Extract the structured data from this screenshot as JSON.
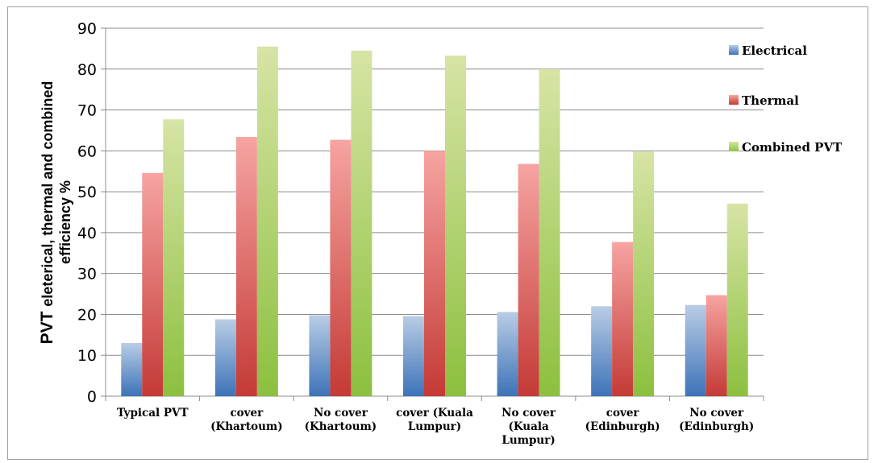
{
  "chart_data": {
    "type": "bar",
    "categories": [
      "Typical PVT",
      "cover (Khartoum)",
      "No cover (Khartoum)",
      "cover (Kuala Lumpur)",
      "No cover (Kuala Lumpur)",
      "cover (Edinburgh)",
      "No cover (Edinburgh)"
    ],
    "category_lines": [
      [
        "Typical PVT"
      ],
      [
        "cover",
        "(Khartoum)"
      ],
      [
        "No cover",
        "(Khartoum)"
      ],
      [
        "cover (Kuala",
        "Lumpur)"
      ],
      [
        "No cover",
        "(Kuala",
        "Lumpur)"
      ],
      [
        "cover",
        "(Edinburgh)"
      ],
      [
        "No cover",
        "(Edinburgh)"
      ]
    ],
    "series": [
      {
        "name": "Electrical",
        "color": "#4f81bd",
        "values": [
          13,
          18.8,
          19.8,
          19.6,
          20.6,
          22,
          22.3
        ]
      },
      {
        "name": "Thermal",
        "color": "#c0504d",
        "values": [
          54.6,
          63.4,
          62.7,
          60,
          56.8,
          37.7,
          24.7
        ]
      },
      {
        "name": "Combined PVT",
        "color": "#9bbb59",
        "values": [
          67.7,
          85.5,
          84.5,
          83.3,
          80,
          59.8,
          47.1
        ]
      }
    ],
    "ylabel_prefix": "PVT",
    "ylabel": "eleterical, thermal and combined",
    "ylabel_line2": "efficiency %",
    "ylim": [
      0,
      90
    ],
    "yticks": [
      0,
      10,
      20,
      30,
      40,
      50,
      60,
      70,
      80,
      90
    ],
    "grid": true,
    "legend_position": "right"
  }
}
